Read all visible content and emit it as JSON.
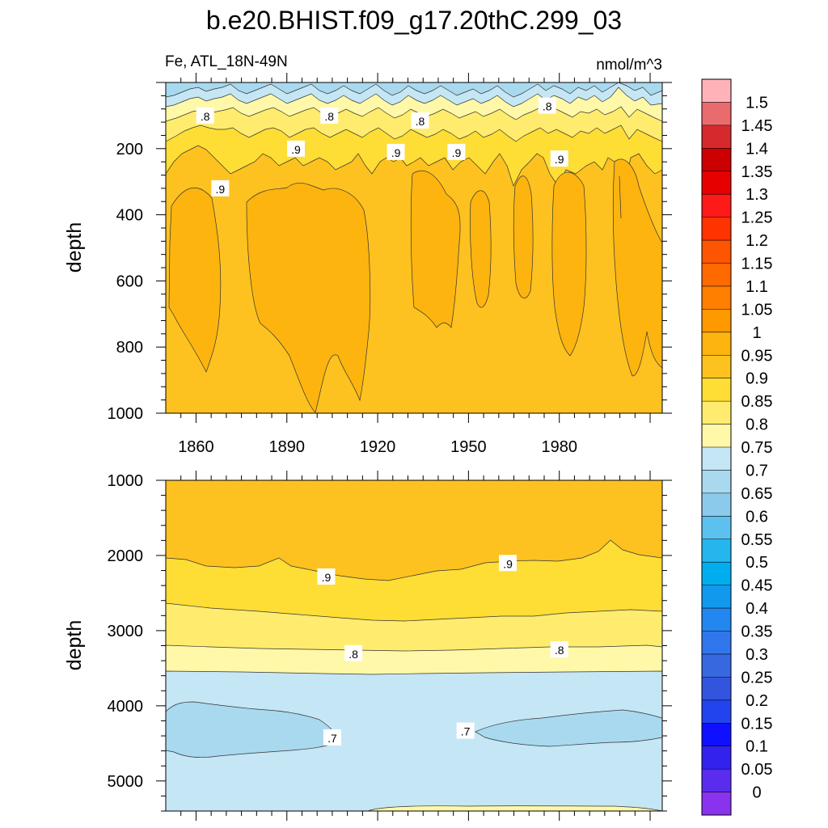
{
  "chart_data": {
    "type": "heatmap",
    "title": "b.e20.BHIST.f09_g17.20thC.299_03",
    "subtitle_left": "Fe, ATL_18N-49N",
    "subtitle_right": "nmol/m^3",
    "panels": [
      {
        "name": "upper",
        "ylabel": "depth",
        "xlabel": "",
        "xlim": [
          1850,
          2014
        ],
        "ylim": [
          0,
          1000
        ],
        "y_reversed": true,
        "xticks": [
          1860,
          1890,
          1920,
          1950,
          1980
        ],
        "yticks": [
          200,
          400,
          600,
          800,
          1000
        ],
        "contour_labels": [
          {
            "text": ".8",
            "x": 1863,
            "y": 100
          },
          {
            "text": ".8",
            "x": 1904,
            "y": 100
          },
          {
            "text": ".8",
            "x": 1934,
            "y": 115
          },
          {
            "text": ".8",
            "x": 1976,
            "y": 70
          },
          {
            "text": ".9",
            "x": 1893,
            "y": 200
          },
          {
            "text": ".9",
            "x": 1926,
            "y": 210
          },
          {
            "text": ".9",
            "x": 1946,
            "y": 210
          },
          {
            "text": ".9",
            "x": 1980,
            "y": 230
          },
          {
            "text": ".9",
            "x": 1868,
            "y": 320
          }
        ]
      },
      {
        "name": "lower",
        "ylabel": "depth",
        "xlabel": "",
        "xlim": [
          1850,
          2014
        ],
        "ylim": [
          1000,
          5400
        ],
        "y_reversed": true,
        "yticks": [
          1000,
          2000,
          3000,
          4000,
          5000
        ],
        "contour_labels": [
          {
            "text": ".9",
            "x": 1903,
            "y": 2280
          },
          {
            "text": ".9",
            "x": 1963,
            "y": 2100
          },
          {
            "text": ".8",
            "x": 1912,
            "y": 3300
          },
          {
            "text": ".8",
            "x": 1980,
            "y": 3250
          },
          {
            "text": ".7",
            "x": 1905,
            "y": 4420
          },
          {
            "text": ".7",
            "x": 1949,
            "y": 4330
          }
        ]
      }
    ],
    "colorbar": {
      "levels": [
        "1.5",
        "1.45",
        "1.4",
        "1.35",
        "1.3",
        "1.25",
        "1.2",
        "1.15",
        "1.1",
        "1.05",
        "1",
        "0.95",
        "0.9",
        "0.85",
        "0.8",
        "0.75",
        "0.7",
        "0.65",
        "0.6",
        "0.55",
        "0.5",
        "0.45",
        "0.4",
        "0.35",
        "0.3",
        "0.25",
        "0.2",
        "0.15",
        "0.1",
        "0.05",
        "0"
      ],
      "colors": [
        "#ffb3b8",
        "#ea6b6e",
        "#d6292e",
        "#cc0000",
        "#e60000",
        "#ff1a1a",
        "#ff3300",
        "#ff5500",
        "#ff6a00",
        "#ff7f00",
        "#ff9900",
        "#fdb40e",
        "#fdc21f",
        "#fedd35",
        "#ffec6e",
        "#fff8a8",
        "#c5e6f4",
        "#a8d9ef",
        "#8ccaeb",
        "#5dc1ef",
        "#25b6ee",
        "#00aeef",
        "#1199ee",
        "#2287ee",
        "#3077ee",
        "#3868e0",
        "#3355dd",
        "#2244ee",
        "#0f10ff",
        "#3322ee",
        "#5a2cee",
        "#8a33ee"
      ]
    },
    "band_colors": {
      "lt_0.7": "#a8d9ef",
      "0.7_0.75": "#c5e6f4",
      "0.75_0.8": "#fff8a8",
      "0.8_0.85": "#ffec6e",
      "0.85_0.9": "#fedd35",
      "0.9_0.95": "#fdc21f",
      "0.95_1": "#fdb40e"
    }
  }
}
